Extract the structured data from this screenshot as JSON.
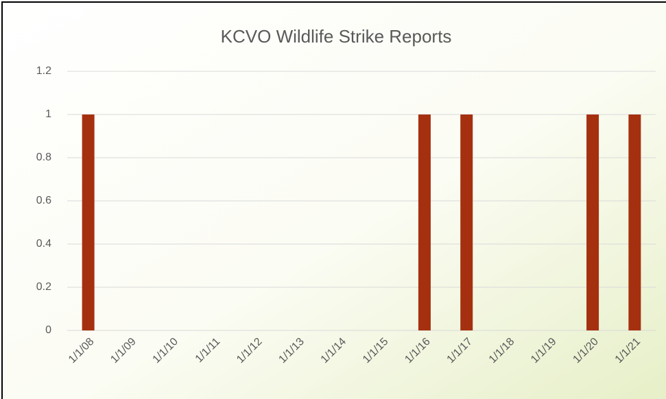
{
  "chart_data": {
    "type": "bar",
    "title": "KCVO Wildlife Strike Reports",
    "categories": [
      "1/1/08",
      "1/1/09",
      "1/1/10",
      "1/1/11",
      "1/1/12",
      "1/1/13",
      "1/1/14",
      "1/1/15",
      "1/1/16",
      "1/1/17",
      "1/1/18",
      "1/1/19",
      "1/1/20",
      "1/1/21"
    ],
    "values": [
      1,
      0,
      0,
      0,
      0,
      0,
      0,
      0,
      1,
      1,
      0,
      0,
      1,
      1
    ],
    "color": "#a5300f",
    "ylim": [
      0,
      1.2
    ],
    "yticks": [
      0,
      0.2,
      0.4,
      0.6,
      0.8,
      1,
      1.2
    ],
    "grid": true
  }
}
